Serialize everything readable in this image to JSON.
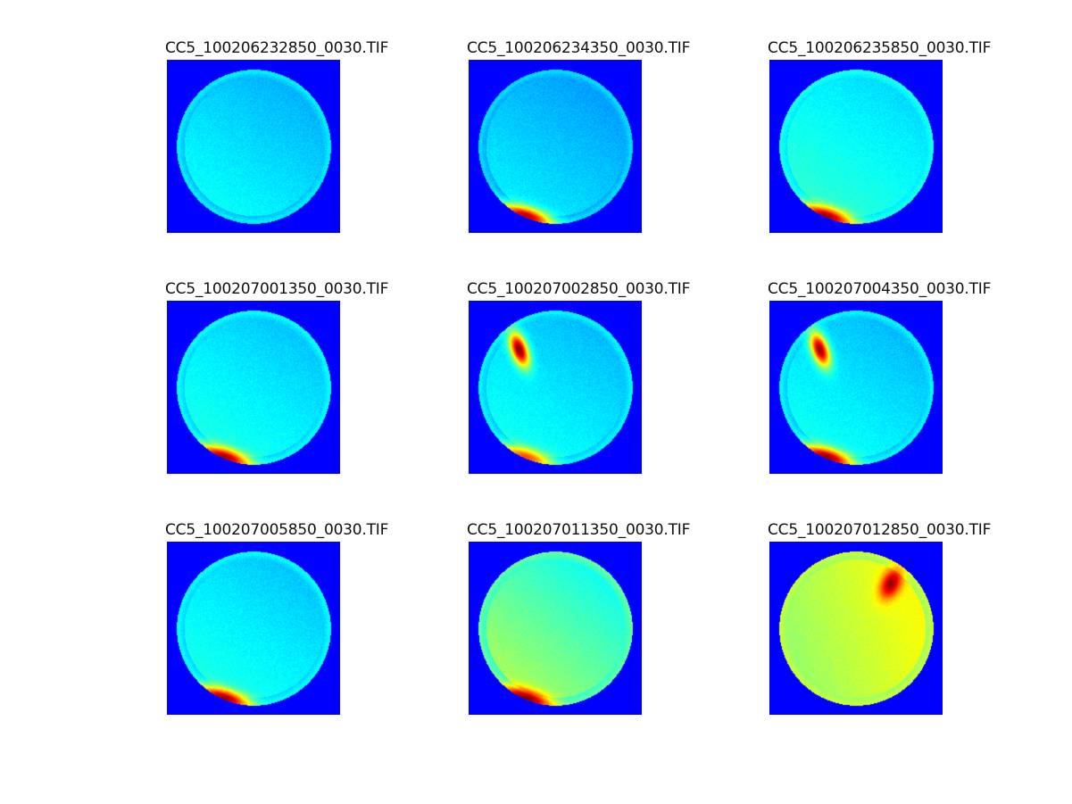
{
  "figure": {
    "background": "#ffffff",
    "panels": [
      {
        "title": "CC5_100206232850_0030.TIF",
        "colormap": "jet",
        "base_level": 0.34,
        "hotspots": []
      },
      {
        "title": "CC5_100206234350_0030.TIF",
        "colormap": "jet",
        "base_level": 0.32,
        "hotspots": [
          {
            "region": "bottom-left",
            "level": 0.95
          }
        ]
      },
      {
        "title": "CC5_100206235850_0030.TIF",
        "colormap": "jet",
        "base_level": 0.38,
        "hotspots": [
          {
            "region": "bottom-left",
            "level": 0.97
          }
        ]
      },
      {
        "title": "CC5_100207001350_0030.TIF",
        "colormap": "jet",
        "base_level": 0.36,
        "hotspots": [
          {
            "region": "bottom-left",
            "level": 0.97
          }
        ]
      },
      {
        "title": "CC5_100207002850_0030.TIF",
        "colormap": "jet",
        "base_level": 0.35,
        "hotspots": [
          {
            "region": "top-left",
            "level": 1.0
          },
          {
            "region": "bottom-left",
            "level": 0.8
          }
        ]
      },
      {
        "title": "CC5_100207004350_0030.TIF",
        "colormap": "jet",
        "base_level": 0.35,
        "hotspots": [
          {
            "region": "top-left",
            "level": 0.98
          },
          {
            "region": "bottom-left",
            "level": 0.98
          }
        ]
      },
      {
        "title": "CC5_100207005850_0030.TIF",
        "colormap": "jet",
        "base_level": 0.36,
        "hotspots": [
          {
            "region": "bottom-left",
            "level": 0.97
          }
        ]
      },
      {
        "title": "CC5_100207011350_0030.TIF",
        "colormap": "jet",
        "base_level": 0.45,
        "hotspots": [
          {
            "region": "bottom-left",
            "level": 1.0
          }
        ]
      },
      {
        "title": "CC5_100207012850_0030.TIF",
        "colormap": "jet",
        "base_level": 0.55,
        "hotspots": [
          {
            "region": "top-right",
            "level": 0.98
          }
        ]
      }
    ]
  }
}
